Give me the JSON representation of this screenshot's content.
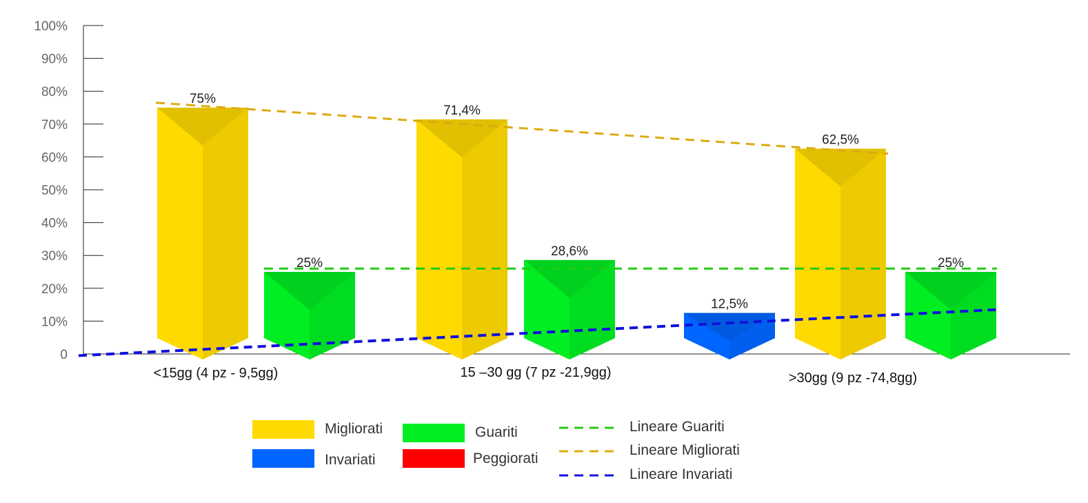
{
  "chart_data": {
    "type": "bar",
    "categories": [
      "<15gg (4 pz - 9,5gg)",
      "15 –30 gg (7 pz -21,9gg)",
      ">30gg (9 pz -74,8gg)"
    ],
    "y_ticks": [
      "0",
      "10%",
      "20%",
      "30%",
      "40%",
      "50%",
      "60%",
      "70%",
      "80%",
      "90%",
      "100%"
    ],
    "ylim": [
      0,
      100
    ],
    "series": [
      {
        "name": "Migliorati",
        "color": "#FFDA00",
        "values": [
          75,
          71.4,
          62.5
        ],
        "labels": [
          "75%",
          "71,4%",
          "62,5%"
        ]
      },
      {
        "name": "Guariti",
        "color": "#00EE22",
        "values": [
          25,
          28.6,
          25
        ],
        "labels": [
          "25%",
          "28,6%",
          "25%"
        ]
      },
      {
        "name": "Invariati",
        "color": "#0066FF",
        "values": [
          0,
          0,
          12.5
        ],
        "labels": [
          "",
          "",
          "12,5%"
        ]
      },
      {
        "name": "Peggiorati",
        "color": "#FF0000",
        "values": [
          0,
          0,
          0
        ],
        "labels": [
          "",
          "",
          ""
        ]
      }
    ],
    "trendlines": [
      {
        "name": "Lineare Guariti",
        "color": "#22CC11",
        "from": 26,
        "to": 26
      },
      {
        "name": "Lineare Migliorati",
        "color": "#DDAA11",
        "from": 76.5,
        "to": 61
      },
      {
        "name": "Lineare Invariati",
        "color": "#1111DD",
        "from": -0.5,
        "to": 13.5
      }
    ],
    "legend_position": "bottom"
  }
}
